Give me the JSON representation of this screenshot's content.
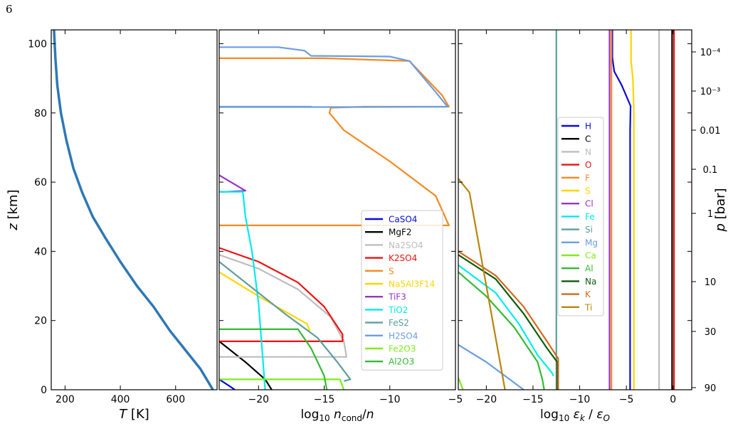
{
  "page_number": "6",
  "chart_data": [
    {
      "type": "line",
      "panel": "left",
      "xlabel": "T [K]",
      "ylabel": "z [km]",
      "xlim": [
        150,
        750
      ],
      "ylim": [
        0,
        104
      ],
      "xticks": [
        200,
        400,
        600
      ],
      "yticks": [
        0,
        20,
        40,
        60,
        80,
        100
      ],
      "series": [
        {
          "color": "#2e78b5",
          "x": [
            160,
            165,
            172,
            185,
            205,
            230,
            262,
            300,
            345,
            400,
            460,
            520,
            580,
            640,
            690,
            735
          ],
          "y": [
            104,
            96,
            88,
            80,
            72,
            64,
            57,
            50,
            44,
            37,
            30,
            24,
            17,
            11,
            6,
            0
          ]
        }
      ]
    },
    {
      "type": "line",
      "panel": "middle",
      "xlabel": "log10 n_cond/n",
      "xlim": [
        -23,
        -5
      ],
      "ylim": [
        0,
        104
      ],
      "xticks": [
        -20,
        -15,
        -10,
        -5
      ],
      "legend_position": "lower-right",
      "series": [
        {
          "name": "CaSO4",
          "color": "#0a0adc",
          "x": [
            -23,
            -22.2,
            -21.8
          ],
          "y": [
            3,
            1,
            0
          ]
        },
        {
          "name": "MgF2",
          "color": "#000000",
          "x": [
            -23,
            -21,
            -19.5,
            -19
          ],
          "y": [
            14,
            8,
            3,
            0
          ]
        },
        {
          "name": "Na2SO4",
          "color": "#bdbdbd",
          "x": [
            -23,
            -20,
            -17,
            -14.5,
            -13.5,
            -13.3,
            -20,
            -23
          ],
          "y": [
            39,
            35,
            29,
            21,
            14,
            9.5,
            9.5,
            9.5
          ]
        },
        {
          "name": "K2SO4",
          "color": "#ee1111",
          "x": [
            -23,
            -20,
            -17,
            -15,
            -13.6,
            -13.6,
            -23
          ],
          "y": [
            41,
            37,
            31,
            24,
            16,
            14,
            14
          ]
        },
        {
          "name": "S",
          "color": "#f5891f",
          "x": [
            -23,
            -15,
            -8.5,
            -6,
            -5.5,
            -12,
            -14.5,
            -14.6,
            -13.5,
            -10,
            -6.5,
            -5.5,
            -23
          ],
          "y": [
            95.8,
            95.8,
            95,
            85,
            81.8,
            81.8,
            81.5,
            80,
            75,
            66,
            56,
            47.5,
            47.5
          ]
        },
        {
          "name": "Na5Al3F14",
          "color": "#ffd500",
          "x": [
            -23,
            -20,
            -16.3,
            -16.1
          ],
          "y": [
            34,
            27,
            19,
            17
          ]
        },
        {
          "name": "TiF3",
          "color": "#9834c8",
          "x": [
            -23,
            -21,
            -22.5,
            -23
          ],
          "y": [
            62,
            57.5,
            57.2,
            57.2
          ]
        },
        {
          "name": "TiO2",
          "color": "#00ecec",
          "x": [
            -23,
            -21.2,
            -21,
            -20.5,
            -20,
            -19.7,
            -19.5
          ],
          "y": [
            57.2,
            57.2,
            50,
            40,
            25,
            10,
            0
          ]
        },
        {
          "name": "FeS2",
          "color": "#5f9e9e",
          "x": [
            -23,
            -21,
            -18,
            -15.5,
            -14,
            -13,
            -13.5
          ],
          "y": [
            37,
            31,
            22,
            15,
            8,
            3,
            2.5
          ]
        },
        {
          "name": "H2SO4",
          "color": "#6b9de5",
          "x": [
            -23,
            -18.5,
            -16.5,
            -16,
            -10,
            -8.5,
            -6.5,
            -5.6,
            -12,
            -23,
            -23,
            -16,
            -17.5,
            -23
          ],
          "y": [
            99,
            99,
            98,
            96.5,
            96.3,
            95,
            86,
            81.8,
            81.7,
            81.7,
            81.8,
            81.8,
            81.8,
            81.8
          ]
        },
        {
          "name": "Fe2O3",
          "color": "#7fec1a",
          "x": [
            -23,
            -13.8,
            -13.5
          ],
          "y": [
            3,
            3,
            0
          ]
        },
        {
          "name": "Al2O3",
          "color": "#33bb33",
          "x": [
            -23,
            -17,
            -16,
            -15,
            -14.8
          ],
          "y": [
            17.5,
            17.5,
            12,
            4,
            0
          ]
        }
      ]
    },
    {
      "type": "line",
      "panel": "right",
      "xlabel": "log10 ε_k / ε_O",
      "ylabel": "p [bar]",
      "xlim": [
        -23,
        2
      ],
      "ylim": [
        0,
        104
      ],
      "xticks": [
        -20,
        -15,
        -10,
        -5,
        0
      ],
      "right_axis_ticks": [
        "10⁻⁴",
        "10⁻³",
        "0.01",
        "0.1",
        "1",
        "10",
        "30",
        "90"
      ],
      "legend_position": "center-right",
      "series": [
        {
          "name": "H",
          "color": "#0a0adc",
          "x": [
            -4.6,
            -4.6,
            -4.55,
            -5.5,
            -6.3,
            -6.5,
            -6.5
          ],
          "y": [
            0,
            75,
            82,
            88,
            92,
            96,
            104
          ]
        },
        {
          "name": "C",
          "color": "#000000",
          "x": [
            -0.1,
            -0.1
          ],
          "y": [
            0,
            104
          ]
        },
        {
          "name": "N",
          "color": "#bdbdbd",
          "x": [
            -1.5,
            -1.5
          ],
          "y": [
            0,
            104
          ]
        },
        {
          "name": "O",
          "color": "#ee1111",
          "x": [
            0.1,
            0.1
          ],
          "y": [
            0,
            104
          ]
        },
        {
          "name": "F",
          "color": "#f5891f",
          "x": [
            -6.6,
            -6.6
          ],
          "y": [
            0,
            104
          ]
        },
        {
          "name": "S",
          "color": "#ffd500",
          "x": [
            -4.2,
            -4.2,
            -4.3,
            -4.5,
            -4.5
          ],
          "y": [
            0,
            80,
            90,
            95,
            104
          ]
        },
        {
          "name": "Cl",
          "color": "#9834c8",
          "x": [
            -6.8,
            -6.8
          ],
          "y": [
            0,
            104
          ]
        },
        {
          "name": "Fe",
          "color": "#00ecec",
          "x": [
            -23,
            -19,
            -16.5,
            -14.5,
            -13,
            -12.8
          ],
          "y": [
            36,
            28,
            19,
            10,
            5,
            4
          ]
        },
        {
          "name": "Si",
          "color": "#5f9e9e",
          "x": [
            -12.5,
            -12.5
          ],
          "y": [
            0,
            104
          ]
        },
        {
          "name": "Mg",
          "color": "#6b9de5",
          "x": [
            -23,
            -20,
            -17.5,
            -16
          ],
          "y": [
            13,
            8,
            3,
            0
          ]
        },
        {
          "name": "Ca",
          "color": "#7fec1a",
          "x": [
            -23,
            -22.5
          ],
          "y": [
            3.5,
            0
          ]
        },
        {
          "name": "Al",
          "color": "#33bb33",
          "x": [
            -23,
            -20,
            -17,
            -14.5,
            -14,
            -13.8
          ],
          "y": [
            34,
            27,
            18,
            8,
            3,
            0
          ]
        },
        {
          "name": "Na",
          "color": "#0b5e0b",
          "x": [
            -23,
            -19,
            -16,
            -13.5,
            -12.4,
            -12.4
          ],
          "y": [
            39,
            32,
            22,
            12,
            8,
            0
          ]
        },
        {
          "name": "K",
          "color": "#d2691e",
          "x": [
            -23,
            -19,
            -16,
            -13.5,
            -12.3,
            -12.3
          ],
          "y": [
            40,
            33,
            24,
            14,
            9,
            0
          ]
        },
        {
          "name": "Ti",
          "color": "#b8860b",
          "x": [
            -23,
            -21.8,
            -21,
            -20,
            -19,
            -18.2,
            -18
          ],
          "y": [
            61,
            57,
            45,
            30,
            15,
            3,
            0
          ]
        }
      ]
    }
  ]
}
